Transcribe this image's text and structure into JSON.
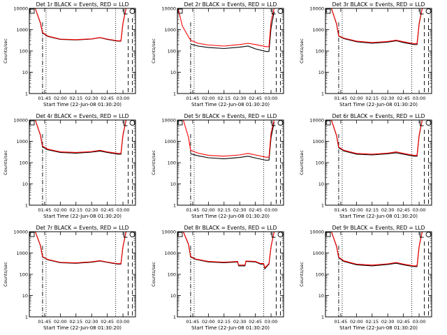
{
  "chart_data": {
    "type": "line",
    "y_scale": "log",
    "ylim": [
      1,
      10000
    ],
    "y_ticks": [
      {
        "value": 1,
        "label": "1"
      },
      {
        "value": 10,
        "label": "10"
      },
      {
        "value": 100,
        "label": "100"
      },
      {
        "value": 1000,
        "label": "1000"
      },
      {
        "value": 10000,
        "label": "10000"
      }
    ],
    "xlim": [
      "01:30:20",
      "03:12"
    ],
    "x_ticks": [
      "01:45",
      "02:00",
      "02:15",
      "02:30",
      "02:45",
      "03:00"
    ],
    "xlabel": "Start Time (22-Jun-08 01:30:20)",
    "ylabel": "Counts/sec",
    "colors": {
      "events": "#000000",
      "lld": "#ff0000"
    },
    "panels": [
      {
        "title": "Det 1r BLACK = Events, RED = LLD",
        "markers": {
          "dashdot": "01:43",
          "dotted_right": "02:53",
          "dashed": [
            "03:05",
            "03:09"
          ]
        },
        "series": [
          {
            "name": "Events",
            "color": "#000000",
            "x": [
              "01:31",
              "01:36",
              "01:41",
              "01:43",
              "01:48",
              "02:00",
              "02:15",
              "02:30",
              "02:38",
              "02:45",
              "02:55",
              "02:58",
              "03:00",
              "03:03"
            ],
            "values": [
              10000,
              10000,
              2000,
              700,
              480,
              350,
              330,
              360,
              420,
              350,
              290,
              290,
              2000,
              10000
            ]
          },
          {
            "name": "LLD",
            "color": "#ff0000",
            "x": [
              "01:31",
              "01:36",
              "01:41",
              "01:43",
              "01:48",
              "02:00",
              "02:15",
              "02:30",
              "02:38",
              "02:45",
              "02:55",
              "02:58",
              "03:00",
              "03:03"
            ],
            "values": [
              10000,
              10000,
              2100,
              740,
              500,
              360,
              340,
              370,
              430,
              360,
              300,
              300,
              2100,
              10000
            ]
          }
        ]
      },
      {
        "title": "Det 2r BLACK = Events, RED = LLD",
        "markers": {
          "dashdot": "01:43",
          "dotted_right": "02:53",
          "dashed": [
            "03:05",
            "03:09"
          ]
        },
        "series": [
          {
            "name": "Events",
            "color": "#000000",
            "x": [
              "01:43",
              "01:50",
              "02:00",
              "02:15",
              "02:30",
              "02:38",
              "02:45",
              "02:55",
              "02:58",
              "03:00",
              "03:03"
            ],
            "values": [
              210,
              170,
              145,
              130,
              150,
              170,
              125,
              95,
              95,
              1200,
              7000
            ]
          },
          {
            "name": "LLD",
            "color": "#ff0000",
            "x": [
              "01:31",
              "01:35",
              "01:40",
              "01:43",
              "01:50",
              "02:00",
              "02:15",
              "02:30",
              "02:38",
              "02:45",
              "02:55",
              "02:58",
              "03:00",
              "03:03"
            ],
            "values": [
              10000,
              1500,
              550,
              320,
              230,
              190,
              170,
              200,
              230,
              200,
              160,
              160,
              2500,
              10000
            ]
          }
        ]
      },
      {
        "title": "Det 3r BLACK = Events, RED = LLD",
        "markers": {
          "dashdot": "01:43",
          "dotted_right": "02:53",
          "dashed": [
            "03:05",
            "03:09"
          ]
        },
        "series": [
          {
            "name": "Events",
            "color": "#000000",
            "x": [
              "01:31",
              "01:36",
              "01:41",
              "01:43",
              "01:48",
              "02:00",
              "02:15",
              "02:30",
              "02:38",
              "02:45",
              "02:55",
              "02:58",
              "03:00",
              "03:03"
            ],
            "values": [
              10000,
              10000,
              1800,
              500,
              380,
              270,
              230,
              260,
              300,
              250,
              200,
              200,
              1800,
              10000
            ]
          },
          {
            "name": "LLD",
            "color": "#ff0000",
            "x": [
              "01:31",
              "01:36",
              "01:41",
              "01:43",
              "01:48",
              "02:00",
              "02:15",
              "02:30",
              "02:38",
              "02:45",
              "02:55",
              "02:58",
              "03:00",
              "03:03"
            ],
            "values": [
              10000,
              10000,
              1900,
              520,
              400,
              290,
              250,
              280,
              320,
              270,
              220,
              220,
              2000,
              10000
            ]
          }
        ]
      },
      {
        "title": "Det 4r BLACK = Events, RED = LLD",
        "markers": {
          "dashdot": "01:43",
          "dotted_right": "02:53",
          "dashed": [
            "03:05",
            "03:09"
          ]
        },
        "series": [
          {
            "name": "Events",
            "color": "#000000",
            "x": [
              "01:31",
              "01:36",
              "01:41",
              "01:43",
              "01:48",
              "02:00",
              "02:15",
              "02:30",
              "02:38",
              "02:45",
              "02:55",
              "02:58",
              "03:00",
              "03:03"
            ],
            "values": [
              10000,
              10000,
              1900,
              550,
              400,
              300,
              280,
              310,
              350,
              300,
              250,
              250,
              1900,
              10000
            ]
          },
          {
            "name": "LLD",
            "color": "#ff0000",
            "x": [
              "01:31",
              "01:36",
              "01:41",
              "01:43",
              "01:48",
              "02:00",
              "02:15",
              "02:30",
              "02:38",
              "02:45",
              "02:55",
              "02:58",
              "03:00",
              "03:03"
            ],
            "values": [
              10000,
              10000,
              2000,
              600,
              430,
              320,
              300,
              330,
              380,
              320,
              270,
              270,
              2100,
              10000
            ]
          }
        ]
      },
      {
        "title": "Det 5r BLACK = Events, RED = LLD",
        "markers": {
          "dashdot": "01:43",
          "dotted_right": "02:53",
          "dashed": [
            "03:05",
            "03:09"
          ]
        },
        "series": [
          {
            "name": "Events",
            "color": "#000000",
            "x": [
              "01:43",
              "01:50",
              "02:00",
              "02:15",
              "02:30",
              "02:38",
              "02:45",
              "02:55",
              "02:58",
              "03:00",
              "03:03"
            ],
            "values": [
              260,
              210,
              170,
              150,
              175,
              200,
              165,
              130,
              130,
              1500,
              8000
            ]
          },
          {
            "name": "LLD",
            "color": "#ff0000",
            "x": [
              "01:31",
              "01:36",
              "01:41",
              "01:43",
              "01:50",
              "02:00",
              "02:15",
              "02:30",
              "02:38",
              "02:45",
              "02:55",
              "02:58",
              "03:00",
              "03:03"
            ],
            "values": [
              10000,
              10000,
              1500,
              380,
              280,
              220,
              200,
              230,
              270,
              230,
              180,
              180,
              2500,
              10000
            ]
          }
        ]
      },
      {
        "title": "Det 6r BLACK = Events, RED = LLD",
        "markers": {
          "dashdot": "01:43",
          "dotted_right": "02:53",
          "dashed": [
            "03:05",
            "03:09"
          ]
        },
        "series": [
          {
            "name": "Events",
            "color": "#000000",
            "x": [
              "01:31",
              "01:36",
              "01:41",
              "01:43",
              "01:48",
              "02:00",
              "02:15",
              "02:30",
              "02:38",
              "02:45",
              "02:55",
              "02:58",
              "03:00",
              "03:03"
            ],
            "values": [
              10000,
              10000,
              1800,
              500,
              350,
              250,
              230,
              260,
              290,
              250,
              200,
              200,
              1800,
              10000
            ]
          },
          {
            "name": "LLD",
            "color": "#ff0000",
            "x": [
              "01:31",
              "01:36",
              "01:41",
              "01:43",
              "01:48",
              "02:00",
              "02:15",
              "02:30",
              "02:38",
              "02:45",
              "02:55",
              "02:58",
              "03:00",
              "03:03"
            ],
            "values": [
              10000,
              10000,
              1900,
              540,
              380,
              270,
              250,
              280,
              320,
              270,
              220,
              220,
              2000,
              10000
            ]
          }
        ]
      },
      {
        "title": "Det 7r BLACK = Events, RED = LLD",
        "markers": {
          "dashdot": "01:43",
          "dotted_right": "02:53",
          "dashed": [
            "03:05",
            "03:09"
          ]
        },
        "series": [
          {
            "name": "Events",
            "color": "#000000",
            "x": [
              "01:31",
              "01:36",
              "01:41",
              "01:43",
              "01:48",
              "02:00",
              "02:15",
              "02:30",
              "02:38",
              "02:45",
              "02:55",
              "02:58",
              "03:00",
              "03:03"
            ],
            "values": [
              10000,
              10000,
              2200,
              650,
              480,
              350,
              330,
              370,
              420,
              360,
              300,
              300,
              2000,
              10000
            ]
          },
          {
            "name": "LLD",
            "color": "#ff0000",
            "x": [
              "01:31",
              "01:36",
              "01:41",
              "01:43",
              "01:48",
              "02:00",
              "02:15",
              "02:30",
              "02:38",
              "02:45",
              "02:55",
              "02:58",
              "03:00",
              "03:03"
            ],
            "values": [
              10000,
              10000,
              2300,
              680,
              500,
              365,
              345,
              385,
              440,
              375,
              315,
              315,
              2100,
              10000
            ]
          }
        ]
      },
      {
        "title": "Det 8r BLACK = Events, RED = LLD",
        "markers": {
          "dashdot": "01:43",
          "dotted_right": "02:53",
          "dashed": [
            "03:05",
            "03:09"
          ]
        },
        "series": [
          {
            "name": "Events",
            "color": "#000000",
            "x": [
              "01:31",
              "01:36",
              "01:41",
              "01:43",
              "01:48",
              "02:00",
              "02:15",
              "02:28",
              "02:29",
              "02:35",
              "02:36",
              "02:45",
              "02:50",
              "02:53",
              "02:54",
              "02:58",
              "03:00",
              "03:03"
            ],
            "values": [
              10000,
              10000,
              2500,
              650,
              500,
              380,
              350,
              380,
              250,
              250,
              400,
              380,
              300,
              300,
              180,
              300,
              2000,
              10000
            ]
          },
          {
            "name": "LLD",
            "color": "#ff0000",
            "x": [
              "01:31",
              "01:36",
              "01:41",
              "01:43",
              "01:48",
              "02:00",
              "02:15",
              "02:28",
              "02:29",
              "02:35",
              "02:36",
              "02:45",
              "02:50",
              "02:53",
              "02:54",
              "02:58",
              "03:00",
              "03:03"
            ],
            "values": [
              10000,
              10000,
              2600,
              690,
              520,
              400,
              370,
              400,
              270,
              270,
              420,
              400,
              320,
              320,
              200,
              320,
              2100,
              10000
            ]
          }
        ]
      },
      {
        "title": "Det 9r BLACK = Events, RED = LLD",
        "markers": {
          "dashdot": "01:43",
          "dotted_right": "02:53",
          "dashed": [
            "03:05",
            "03:09"
          ]
        },
        "series": [
          {
            "name": "Events",
            "color": "#000000",
            "x": [
              "01:31",
              "01:36",
              "01:41",
              "01:43",
              "01:48",
              "02:00",
              "02:15",
              "02:30",
              "02:38",
              "02:45",
              "02:55",
              "02:58",
              "03:00",
              "03:03"
            ],
            "values": [
              10000,
              10000,
              2000,
              600,
              400,
              280,
              250,
              290,
              330,
              280,
              230,
              230,
              2000,
              10000
            ]
          },
          {
            "name": "LLD",
            "color": "#ff0000",
            "x": [
              "01:31",
              "01:36",
              "01:41",
              "01:43",
              "01:48",
              "02:00",
              "02:15",
              "02:30",
              "02:38",
              "02:45",
              "02:55",
              "02:58",
              "03:00",
              "03:03"
            ],
            "values": [
              10000,
              10000,
              2100,
              640,
              430,
              300,
              270,
              310,
              360,
              300,
              250,
              250,
              2100,
              10000
            ]
          }
        ]
      }
    ]
  }
}
